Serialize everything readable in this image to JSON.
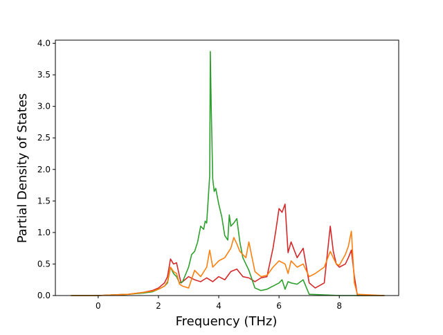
{
  "chart_data": {
    "type": "line",
    "title": "",
    "xlabel": "Frequency (THz)",
    "ylabel": "Partial Density of States",
    "xlim": [
      -1.42,
      9.97
    ],
    "ylim": [
      0.0,
      4.05
    ],
    "xticks": [
      0,
      2,
      4,
      6,
      8
    ],
    "yticks": [
      0.0,
      0.5,
      1.0,
      1.5,
      2.0,
      2.5,
      3.0,
      3.5,
      4.0
    ],
    "xtick_labels": [
      "0",
      "2",
      "4",
      "6",
      "8"
    ],
    "ytick_labels": [
      "0.0",
      "0.5",
      "1.0",
      "1.5",
      "2.0",
      "2.5",
      "3.0",
      "3.5",
      "4.0"
    ],
    "grid": false,
    "legend": "none",
    "series": [
      {
        "color": "#d62728",
        "x": [
          -0.9,
          0.0,
          0.5,
          1.0,
          1.5,
          1.8,
          2.0,
          2.2,
          2.3,
          2.4,
          2.5,
          2.6,
          2.7,
          2.75,
          2.8,
          3.0,
          3.2,
          3.4,
          3.6,
          3.7,
          3.8,
          4.0,
          4.2,
          4.4,
          4.6,
          4.8,
          5.0,
          5.2,
          5.4,
          5.6,
          5.8,
          5.9,
          6.0,
          6.1,
          6.2,
          6.3,
          6.4,
          6.6,
          6.8,
          7.0,
          7.2,
          7.5,
          7.7,
          7.8,
          7.9,
          8.0,
          8.2,
          8.3,
          8.4,
          8.5,
          8.6,
          9.5
        ],
        "y": [
          0.0,
          0.0,
          0.01,
          0.02,
          0.05,
          0.08,
          0.12,
          0.2,
          0.3,
          0.58,
          0.5,
          0.52,
          0.3,
          0.2,
          0.22,
          0.3,
          0.25,
          0.22,
          0.28,
          0.25,
          0.22,
          0.3,
          0.25,
          0.38,
          0.42,
          0.3,
          0.28,
          0.22,
          0.28,
          0.3,
          0.75,
          1.05,
          1.38,
          1.32,
          1.45,
          0.68,
          0.85,
          0.6,
          0.75,
          0.2,
          0.12,
          0.2,
          1.1,
          0.7,
          0.5,
          0.45,
          0.5,
          0.6,
          0.72,
          0.3,
          0.0,
          0.0
        ]
      },
      {
        "color": "#2ca02c",
        "x": [
          -0.9,
          0.0,
          0.5,
          1.0,
          1.5,
          1.8,
          2.0,
          2.2,
          2.3,
          2.4,
          2.5,
          2.6,
          2.7,
          2.8,
          3.0,
          3.1,
          3.2,
          3.3,
          3.4,
          3.5,
          3.55,
          3.6,
          3.7,
          3.72,
          3.75,
          3.8,
          3.85,
          3.9,
          4.0,
          4.1,
          4.2,
          4.3,
          4.35,
          4.4,
          4.5,
          4.6,
          4.7,
          4.8,
          4.9,
          5.0,
          5.2,
          5.4,
          5.6,
          5.8,
          6.0,
          6.1,
          6.2,
          6.3,
          6.4,
          6.6,
          6.8,
          7.0,
          7.5,
          8.0,
          8.4,
          8.5,
          8.6,
          9.5
        ],
        "y": [
          0.0,
          0.0,
          0.01,
          0.02,
          0.04,
          0.06,
          0.1,
          0.15,
          0.2,
          0.45,
          0.35,
          0.3,
          0.2,
          0.22,
          0.45,
          0.65,
          0.7,
          0.85,
          1.1,
          1.05,
          1.18,
          1.15,
          1.9,
          3.87,
          3.0,
          1.85,
          1.65,
          1.7,
          1.45,
          1.25,
          0.95,
          0.88,
          1.28,
          1.1,
          1.15,
          1.22,
          0.85,
          0.6,
          0.5,
          0.4,
          0.12,
          0.08,
          0.1,
          0.15,
          0.2,
          0.25,
          0.1,
          0.22,
          0.2,
          0.18,
          0.25,
          0.02,
          0.01,
          0.0,
          0.0,
          0.0,
          0.0,
          0.0
        ]
      },
      {
        "color": "#ff7f0e",
        "x": [
          -0.9,
          0.0,
          0.5,
          1.0,
          1.5,
          1.8,
          2.0,
          2.2,
          2.3,
          2.4,
          2.5,
          2.6,
          2.7,
          2.8,
          3.0,
          3.2,
          3.4,
          3.6,
          3.7,
          3.8,
          4.0,
          4.2,
          4.4,
          4.5,
          4.6,
          4.7,
          4.8,
          4.9,
          5.0,
          5.2,
          5.4,
          5.6,
          5.8,
          6.0,
          6.2,
          6.3,
          6.4,
          6.6,
          6.8,
          7.0,
          7.2,
          7.5,
          7.7,
          7.8,
          7.9,
          8.0,
          8.2,
          8.3,
          8.4,
          8.5,
          8.6,
          9.5
        ],
        "y": [
          0.0,
          0.0,
          0.01,
          0.02,
          0.05,
          0.07,
          0.1,
          0.15,
          0.22,
          0.45,
          0.38,
          0.35,
          0.18,
          0.15,
          0.12,
          0.4,
          0.3,
          0.45,
          0.72,
          0.45,
          0.55,
          0.6,
          0.75,
          0.92,
          0.82,
          0.7,
          0.65,
          0.6,
          0.85,
          0.38,
          0.3,
          0.32,
          0.45,
          0.55,
          0.5,
          0.35,
          0.55,
          0.45,
          0.5,
          0.3,
          0.35,
          0.45,
          0.7,
          0.6,
          0.5,
          0.48,
          0.65,
          0.78,
          1.02,
          0.2,
          0.02,
          0.0
        ]
      }
    ]
  }
}
